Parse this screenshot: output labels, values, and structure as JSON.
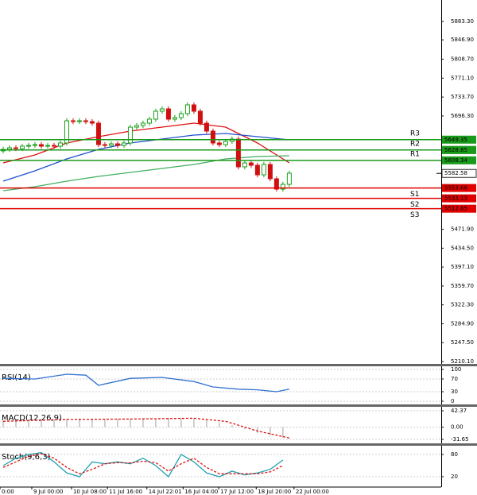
{
  "chart_data": [
    {
      "type": "candlestick",
      "up_color": "#1aa01a",
      "down_color": "#d01010",
      "xlim": [
        -0.5,
        68.9
      ],
      "ylim": [
        5205.4,
        5925.8
      ],
      "yticks": [
        {
          "value": 5883.3,
          "label": "5883.30"
        },
        {
          "value": 5846.9,
          "label": "5846.90"
        },
        {
          "value": 5808.7,
          "label": "5808.70"
        },
        {
          "value": 5771.1,
          "label": "5771.10"
        },
        {
          "value": 5733.7,
          "label": "5733.70"
        },
        {
          "value": 5696.3,
          "label": "5696.30"
        },
        {
          "value": 5471.9,
          "label": "5471.90"
        },
        {
          "value": 5434.5,
          "label": "5434.50"
        },
        {
          "value": 5397.1,
          "label": "5397.10"
        },
        {
          "value": 5359.7,
          "label": "5359.70"
        },
        {
          "value": 5322.3,
          "label": "5322.30"
        },
        {
          "value": 5284.9,
          "label": "5284.90"
        },
        {
          "value": 5247.5,
          "label": "5247.50"
        },
        {
          "value": 5210.1,
          "label": "5210.10"
        }
      ],
      "xticks": [
        {
          "value": -0.5,
          "label": "0:00"
        },
        {
          "value": 4.5,
          "label": "9 Jul 00:00"
        },
        {
          "value": 10.75,
          "label": "10 Jul 08:00"
        },
        {
          "value": 16.4,
          "label": "11 Jul 16:00"
        },
        {
          "value": 22.6,
          "label": "14 Jul 22:01"
        },
        {
          "value": 28.3,
          "label": "16 Jul 04:00"
        },
        {
          "value": 33.9,
          "label": "17 Jul 12:00"
        },
        {
          "value": 39.8,
          "label": "18 Jul 20:00"
        },
        {
          "value": 45.75,
          "label": "22 Jul 00:00"
        }
      ],
      "open": [
        5627.0,
        5630.1,
        5633.2,
        5631.6,
        5636.4,
        5637.9,
        5639.5,
        5636.4,
        5637.9,
        5636.4,
        5642.7,
        5686.7,
        5685.1,
        5686.7,
        5685.1,
        5682.0,
        5639.5,
        5637.9,
        5641.1,
        5637.9,
        5642.7,
        5674.1,
        5677.3,
        5682.0,
        5689.9,
        5705.6,
        5710.3,
        5689.9,
        5693.0,
        5700.9,
        5718.2,
        5705.6,
        5682.0,
        5666.3,
        5642.7,
        5639.5,
        5645.8,
        5650.5,
        5595.5,
        5603.3,
        5598.6,
        5579.7,
        5600.2,
        5571.9,
        5551.4,
        5560.9
      ],
      "high": [
        5635.1,
        5638.2,
        5638.2,
        5641.4,
        5642.9,
        5644.5,
        5644.5,
        5642.9,
        5642.9,
        5647.7,
        5691.7,
        5691.7,
        5691.7,
        5691.7,
        5690.1,
        5687.0,
        5644.5,
        5646.1,
        5646.1,
        5647.7,
        5679.1,
        5682.3,
        5687.0,
        5694.9,
        5710.6,
        5715.3,
        5715.3,
        5698.0,
        5705.9,
        5723.2,
        5723.2,
        5710.6,
        5687.0,
        5671.3,
        5647.7,
        5650.8,
        5655.5,
        5655.5,
        5608.3,
        5608.3,
        5603.6,
        5605.2,
        5605.2,
        5576.9,
        5565.9,
        5587.9
      ],
      "low": [
        5622.0,
        5625.1,
        5626.6,
        5626.6,
        5631.4,
        5632.9,
        5631.4,
        5631.4,
        5631.4,
        5631.4,
        5637.7,
        5680.1,
        5680.1,
        5680.1,
        5677.0,
        5634.5,
        5632.9,
        5632.9,
        5632.9,
        5632.9,
        5637.7,
        5669.1,
        5672.3,
        5677.0,
        5684.9,
        5700.6,
        5684.9,
        5684.9,
        5688.0,
        5695.9,
        5700.6,
        5677.0,
        5661.3,
        5637.7,
        5634.5,
        5634.5,
        5640.8,
        5590.5,
        5590.5,
        5593.6,
        5574.7,
        5574.7,
        5566.9,
        5546.4,
        5546.4,
        5555.9
      ],
      "close": [
        5630.1,
        5633.2,
        5631.6,
        5636.4,
        5637.9,
        5639.5,
        5636.4,
        5637.9,
        5636.4,
        5642.7,
        5686.7,
        5685.1,
        5686.7,
        5685.1,
        5682.0,
        5639.5,
        5637.9,
        5641.1,
        5637.9,
        5642.7,
        5674.1,
        5677.3,
        5682.0,
        5689.9,
        5705.6,
        5710.3,
        5689.9,
        5693.0,
        5700.9,
        5718.2,
        5705.6,
        5682.0,
        5666.3,
        5642.7,
        5639.5,
        5645.8,
        5650.5,
        5595.5,
        5603.3,
        5598.6,
        5579.7,
        5600.2,
        5571.9,
        5551.4,
        5560.9,
        5582.9
      ],
      "series": [
        {
          "color": "#e01010",
          "x": [
            0,
            5,
            10,
            15,
            20,
            25,
            30,
            35,
            40,
            45
          ],
          "values": [
            5603.3,
            5619.1,
            5642.7,
            5655.2,
            5666.3,
            5674.1,
            5682.0,
            5674.1,
            5642.7,
            5603.3
          ]
        },
        {
          "color": "#2050d0",
          "x": [
            0,
            5,
            10,
            15,
            20,
            25,
            30,
            35,
            40,
            45
          ],
          "values": [
            5567.2,
            5587.6,
            5611.2,
            5630.1,
            5642.7,
            5650.5,
            5658.4,
            5661.5,
            5655.2,
            5649.0
          ]
        },
        {
          "color": "#40b060",
          "x": [
            0,
            5,
            10,
            15,
            20,
            25,
            30,
            35,
            40,
            45
          ],
          "values": [
            5548.3,
            5556.1,
            5567.2,
            5576.6,
            5584.5,
            5592.3,
            5600.2,
            5611.2,
            5615.9,
            5617.5
          ]
        }
      ],
      "levels": [
        {
          "label": "R3",
          "value": 5649.35,
          "color": "#1a9a1a"
        },
        {
          "value": 5628.85,
          "color": "#1a9a1a"
        },
        {
          "label": "R2",
          "value": 5628.85,
          "color": "#1a9a1a"
        },
        {
          "label": "R1",
          "value": 5608.34,
          "color": "#1a9a1a"
        },
        {
          "label": "S1",
          "value": 5553.66,
          "color": "#e00000"
        },
        {
          "label": "S2",
          "value": 5533.13,
          "color": "#e00000"
        },
        {
          "label": "S3",
          "value": 5512.65,
          "color": "#e00000"
        }
      ],
      "last_price": 5582.58
    },
    {
      "type": "line",
      "title": "RSI(14)",
      "ylim": [
        -10,
        110
      ],
      "yticks": [
        100,
        70,
        30,
        0
      ],
      "series": [
        {
          "color": "#3070d0",
          "x": [
            0,
            5,
            10,
            13,
            15,
            20,
            25,
            30,
            33,
            37,
            40,
            43,
            45
          ],
          "values": [
            72,
            70,
            85,
            82,
            50,
            72,
            75,
            62,
            45,
            38,
            36,
            30,
            38
          ]
        }
      ]
    },
    {
      "type": "bar",
      "title": "MACD(12,26,9)",
      "ylim": [
        -39.9,
        52.65
      ],
      "yticks": [
        42.37,
        {
          "value": 0,
          "label": "0.00"
        },
        -31.65
      ],
      "series": [
        {
          "color": "#a0a0a0",
          "x": [
            0,
            2,
            4,
            6,
            8,
            10,
            12,
            14,
            16,
            18,
            20,
            22,
            24,
            26,
            28,
            30,
            32,
            34,
            36,
            38,
            40,
            42,
            44
          ],
          "values": [
            15,
            16,
            18,
            18,
            20,
            22,
            22,
            22,
            21,
            22,
            22,
            23,
            23,
            24,
            24,
            22,
            18,
            12,
            5,
            -5,
            -15,
            -22,
            -28
          ]
        },
        {
          "type": "line",
          "dash": true,
          "color": "#e01010",
          "x": [
            0,
            10,
            20,
            30,
            35,
            40,
            45
          ],
          "values": [
            15,
            20,
            21,
            23,
            15,
            -10,
            -28
          ]
        }
      ]
    },
    {
      "type": "line",
      "title": "Stoch(9,6,3)",
      "ylim": [
        -5.7,
        103.6
      ],
      "yticks": [
        80,
        20
      ],
      "series": [
        {
          "color": "#20a0b0",
          "x": [
            0,
            2,
            4,
            6,
            8,
            10,
            12,
            14,
            16,
            18,
            20,
            22,
            24,
            26,
            28,
            30,
            32,
            34,
            36,
            38,
            40,
            42,
            44
          ],
          "values": [
            50,
            70,
            80,
            85,
            60,
            30,
            20,
            60,
            55,
            60,
            55,
            70,
            50,
            20,
            80,
            60,
            30,
            20,
            35,
            25,
            30,
            40,
            65
          ]
        },
        {
          "type": "line",
          "dash": true,
          "color": "#e01010",
          "x": [
            0,
            2,
            4,
            6,
            8,
            10,
            12,
            14,
            16,
            18,
            20,
            22,
            24,
            26,
            28,
            30,
            32,
            34,
            36,
            38,
            40,
            42,
            44
          ],
          "values": [
            45,
            60,
            75,
            82,
            70,
            45,
            28,
            40,
            55,
            58,
            57,
            62,
            58,
            35,
            55,
            70,
            45,
            28,
            28,
            28,
            28,
            33,
            50
          ]
        }
      ]
    }
  ]
}
